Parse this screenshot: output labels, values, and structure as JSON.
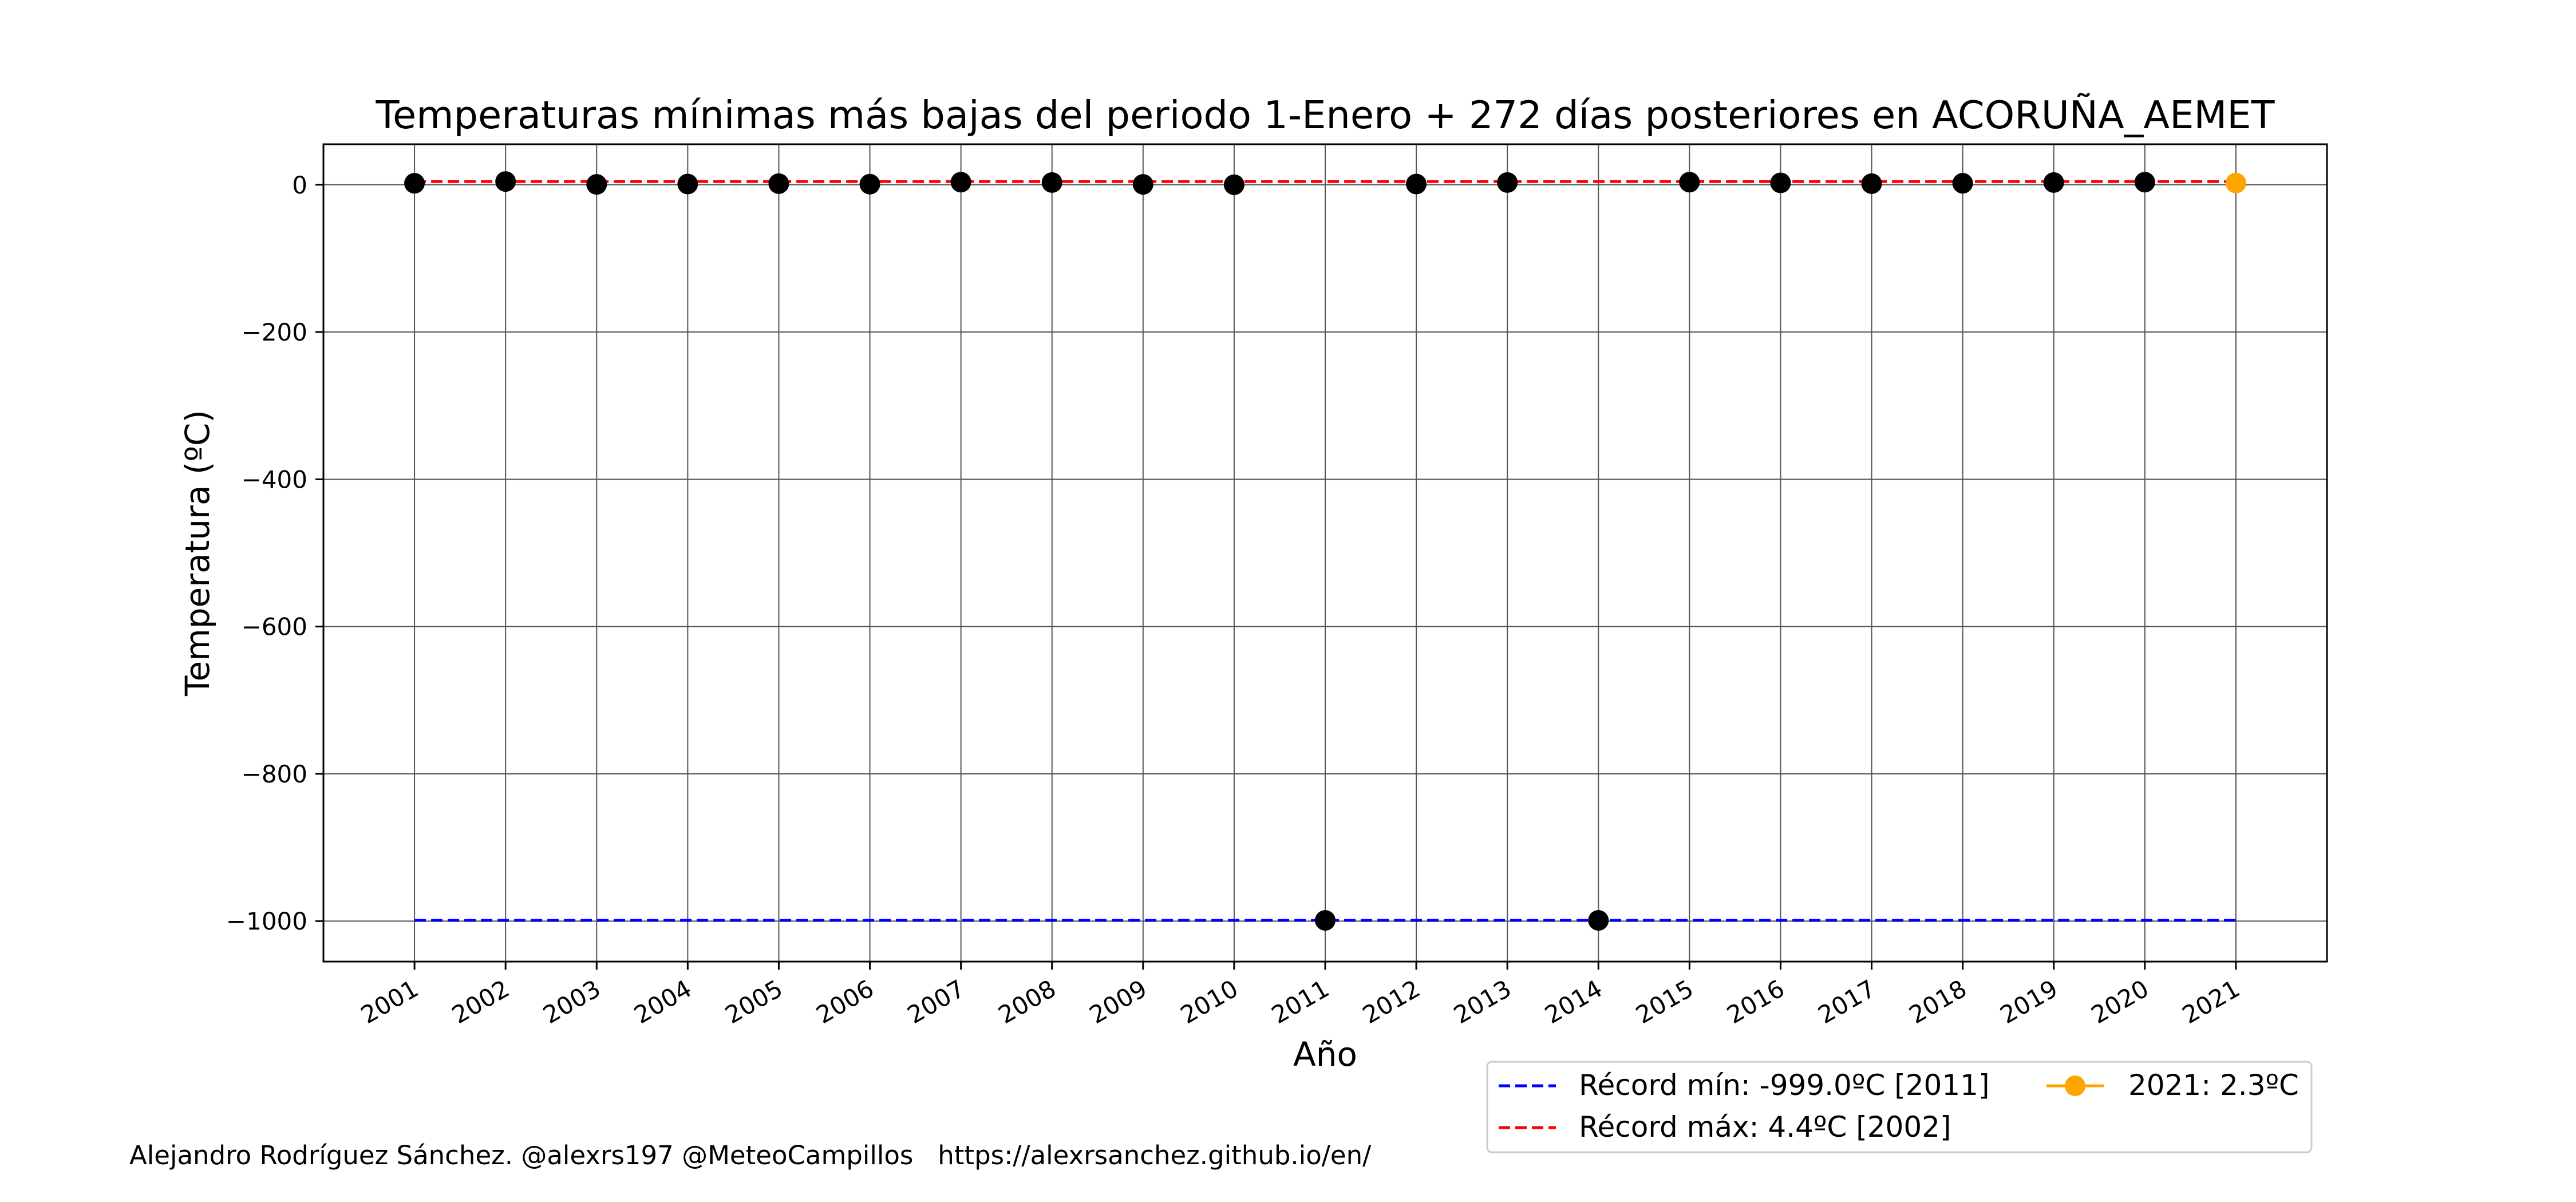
{
  "credit": "Alejandro Rodríguez Sánchez. @alexrs197 @MeteoCampillos   https://alexrsanchez.github.io/en/",
  "colors": {
    "points": "#000000",
    "current": "#ffa500",
    "record_min": "#0000ff",
    "record_max": "#ff0000",
    "grid": "#555555"
  },
  "chart_data": {
    "type": "scatter",
    "title": "Temperaturas mínimas más bajas del periodo 1-Enero + 272 días posteriores en ACORUÑA_AEMET",
    "xlabel": "Año",
    "ylabel": "Temperatura (ºC)",
    "ylim": [
      -1055,
      55
    ],
    "xlim": [
      2000,
      2022.0
    ],
    "yticks": [
      0,
      -200,
      -400,
      -600,
      -800,
      -1000
    ],
    "ytick_labels": [
      "0",
      "−200",
      "−400",
      "−600",
      "−800",
      "−1000"
    ],
    "xticks": [
      2001,
      2002,
      2003,
      2004,
      2005,
      2006,
      2007,
      2008,
      2009,
      2010,
      2011,
      2012,
      2013,
      2014,
      2015,
      2016,
      2017,
      2018,
      2019,
      2020,
      2021
    ],
    "xtick_labels": [
      "2001",
      "2002",
      "2003",
      "2004",
      "2005",
      "2006",
      "2007",
      "2008",
      "2009",
      "2010",
      "2011",
      "2012",
      "2013",
      "2014",
      "2015",
      "2016",
      "2017",
      "2018",
      "2019",
      "2020",
      "2021"
    ],
    "grid": true,
    "series": [
      {
        "role": "annual_minimum",
        "x": [
          2001,
          2002,
          2003,
          2004,
          2005,
          2006,
          2007,
          2008,
          2009,
          2010,
          2011,
          2012,
          2013,
          2014,
          2015,
          2016,
          2017,
          2018,
          2019,
          2020
        ],
        "y": [
          2.0,
          4.4,
          0.5,
          1.0,
          1.5,
          0.8,
          3.5,
          3.0,
          0.5,
          0.0,
          -999.0,
          1.0,
          3.0,
          -999.0,
          3.5,
          2.5,
          1.5,
          2.0,
          3.0,
          3.5
        ]
      },
      {
        "role": "current_year",
        "name": "2021: 2.3ºC",
        "x": [
          2021
        ],
        "y": [
          2.3
        ]
      }
    ],
    "reference_lines": [
      {
        "name": "Récord mín: -999.0ºC [2011]",
        "value": -999.0,
        "x_range": [
          2001,
          2021
        ],
        "style": "dashed",
        "color": "#0000ff"
      },
      {
        "name": "Récord máx: 4.4ºC [2002]",
        "value": 4.4,
        "x_range": [
          2001,
          2021
        ],
        "style": "dashed",
        "color": "#ff0000"
      }
    ],
    "legend_placement": "bottom-right, below axes"
  }
}
